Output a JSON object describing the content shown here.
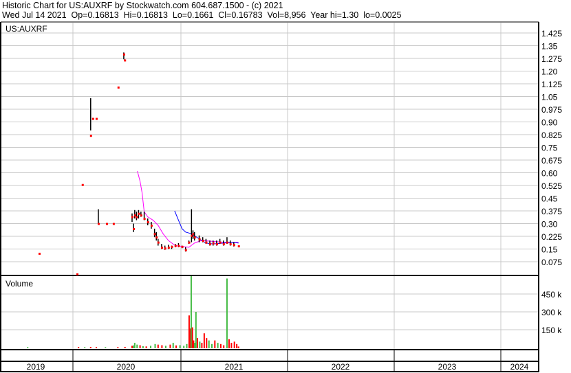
{
  "header": {
    "title": "Historic Chart for US:AUXRF by Stockwatch.com 604.687.1500 - (c) 2021",
    "quote": "Wed Jul 14 2021  Op=0.16813  Hi=0.16813  Lo=0.1661  Cl=0.16783  Vol=8,956  Year hi=1.30  lo=0.0025"
  },
  "colors": {
    "grid": "#c8c8c8",
    "close": "#ff0000",
    "range": "#000000",
    "ma_short": "#ff00ff",
    "ma_long": "#0000ff",
    "vol_up": "#44bb44",
    "vol_down": "#ff0000"
  },
  "chart_data": [
    {
      "type": "scatter",
      "title": "US:AUXRF",
      "ylim": [
        0,
        1.46
      ],
      "yticks": [
        "1.425",
        "1.35",
        "1.275",
        "1.20",
        "1.125",
        "1.05",
        "0.975",
        "0.90",
        "0.825",
        "0.75",
        "0.675",
        "0.60",
        "0.525",
        "0.45",
        "0.375",
        "0.30",
        "0.225",
        "0.15",
        "0.075"
      ],
      "xticks": [
        "2019",
        "2020",
        "2021",
        "2022",
        "2023",
        "2024"
      ],
      "grid": true,
      "price_bars": [
        {
          "date": "2019-09-09",
          "high": 0.124,
          "low": 0.124,
          "close": 0.124
        },
        {
          "date": "2020-01-15",
          "high": 0.005,
          "low": 0.0025,
          "close": 0.0025
        },
        {
          "date": "2020-02-02",
          "high": 0.53,
          "low": 0.53,
          "close": 0.53
        },
        {
          "date": "2020-03-01",
          "high": 1.04,
          "low": 0.85,
          "close": 0.82
        },
        {
          "date": "2020-03-08",
          "high": 0.92,
          "low": 0.92,
          "close": 0.92
        },
        {
          "date": "2020-03-20",
          "high": 0.92,
          "low": 0.92,
          "close": 0.92
        },
        {
          "date": "2020-03-27",
          "high": 0.385,
          "low": 0.3,
          "close": 0.3
        },
        {
          "date": "2020-04-24",
          "high": 0.3,
          "low": 0.3,
          "close": 0.3
        },
        {
          "date": "2020-05-17",
          "high": 0.3,
          "low": 0.3,
          "close": 0.3
        },
        {
          "date": "2020-06-02",
          "high": 1.105,
          "low": 1.105,
          "close": 1.105
        },
        {
          "date": "2020-06-21",
          "high": 1.31,
          "low": 1.27,
          "close": 1.3
        },
        {
          "date": "2020-06-24",
          "high": 1.27,
          "low": 1.26,
          "close": 1.265
        },
        {
          "date": "2020-07-19",
          "high": 0.36,
          "low": 0.31,
          "close": 0.34
        },
        {
          "date": "2020-07-24",
          "high": 0.3,
          "low": 0.25,
          "close": 0.27
        },
        {
          "date": "2020-07-28",
          "high": 0.38,
          "low": 0.33,
          "close": 0.35
        },
        {
          "date": "2020-08-03",
          "high": 0.37,
          "low": 0.32,
          "close": 0.34
        },
        {
          "date": "2020-08-10",
          "high": 0.38,
          "low": 0.33,
          "close": 0.36
        },
        {
          "date": "2020-08-18",
          "high": 0.37,
          "low": 0.34,
          "close": 0.35
        },
        {
          "date": "2020-08-29",
          "high": 0.37,
          "low": 0.32,
          "close": 0.33
        },
        {
          "date": "2020-09-10",
          "high": 0.33,
          "low": 0.29,
          "close": 0.31
        },
        {
          "date": "2020-09-22",
          "high": 0.31,
          "low": 0.27,
          "close": 0.29
        },
        {
          "date": "2020-10-03",
          "high": 0.27,
          "low": 0.22,
          "close": 0.24
        },
        {
          "date": "2020-10-09",
          "high": 0.25,
          "low": 0.2,
          "close": 0.22
        },
        {
          "date": "2020-10-15",
          "high": 0.21,
          "low": 0.17,
          "close": 0.19
        },
        {
          "date": "2020-10-27",
          "high": 0.18,
          "low": 0.15,
          "close": 0.16
        },
        {
          "date": "2020-11-07",
          "high": 0.17,
          "low": 0.145,
          "close": 0.155
        },
        {
          "date": "2020-11-19",
          "high": 0.175,
          "low": 0.15,
          "close": 0.16
        },
        {
          "date": "2020-11-30",
          "high": 0.17,
          "low": 0.15,
          "close": 0.165
        },
        {
          "date": "2020-12-12",
          "high": 0.18,
          "low": 0.16,
          "close": 0.17
        },
        {
          "date": "2020-12-23",
          "high": 0.185,
          "low": 0.16,
          "close": 0.17
        },
        {
          "date": "2021-01-04",
          "high": 0.17,
          "low": 0.155,
          "close": 0.165
        },
        {
          "date": "2021-01-16",
          "high": 0.16,
          "low": 0.135,
          "close": 0.145
        },
        {
          "date": "2021-01-27",
          "high": 0.2,
          "low": 0.18,
          "close": 0.19
        },
        {
          "date": "2021-02-05",
          "high": 0.385,
          "low": 0.19,
          "close": 0.23
        },
        {
          "date": "2021-02-10",
          "high": 0.26,
          "low": 0.21,
          "close": 0.24
        },
        {
          "date": "2021-02-15",
          "high": 0.25,
          "low": 0.2,
          "close": 0.22
        },
        {
          "date": "2021-03-03",
          "high": 0.23,
          "low": 0.19,
          "close": 0.21
        },
        {
          "date": "2021-03-15",
          "high": 0.22,
          "low": 0.19,
          "close": 0.2
        },
        {
          "date": "2021-03-26",
          "high": 0.21,
          "low": 0.18,
          "close": 0.19
        },
        {
          "date": "2021-04-08",
          "high": 0.2,
          "low": 0.17,
          "close": 0.18
        },
        {
          "date": "2021-04-19",
          "high": 0.2,
          "low": 0.17,
          "close": 0.185
        },
        {
          "date": "2021-05-01",
          "high": 0.2,
          "low": 0.17,
          "close": 0.18
        },
        {
          "date": "2021-05-12",
          "high": 0.21,
          "low": 0.18,
          "close": 0.19
        },
        {
          "date": "2021-05-24",
          "high": 0.2,
          "low": 0.17,
          "close": 0.18
        },
        {
          "date": "2021-06-05",
          "high": 0.22,
          "low": 0.18,
          "close": 0.19
        },
        {
          "date": "2021-06-16",
          "high": 0.2,
          "low": 0.17,
          "close": 0.18
        },
        {
          "date": "2021-06-28",
          "high": 0.19,
          "low": 0.165,
          "close": 0.175
        },
        {
          "date": "2021-07-14",
          "high": 0.16813,
          "low": 0.1661,
          "close": 0.16783
        }
      ],
      "ma_short": [
        [
          "2020-08-06",
          0.61
        ],
        [
          "2020-08-15",
          0.55
        ],
        [
          "2020-08-22",
          0.48
        ],
        [
          "2020-08-29",
          0.37
        ],
        [
          "2020-09-10",
          0.34
        ],
        [
          "2020-09-28",
          0.32
        ],
        [
          "2020-10-15",
          0.29
        ],
        [
          "2020-11-01",
          0.24
        ],
        [
          "2020-11-19",
          0.2
        ],
        [
          "2020-12-12",
          0.17
        ],
        [
          "2021-01-04",
          0.165
        ],
        [
          "2021-01-27",
          0.16
        ],
        [
          "2021-02-15",
          0.185
        ],
        [
          "2021-03-10",
          0.2
        ],
        [
          "2021-04-19",
          0.195
        ],
        [
          "2021-05-24",
          0.19
        ],
        [
          "2021-07-14",
          0.19
        ]
      ],
      "ma_long": [
        [
          "2020-12-10",
          0.375
        ],
        [
          "2020-12-23",
          0.32
        ],
        [
          "2021-01-04",
          0.27
        ],
        [
          "2021-01-16",
          0.25
        ],
        [
          "2021-02-05",
          0.24
        ],
        [
          "2021-03-03",
          0.21
        ],
        [
          "2021-03-26",
          0.185
        ],
        [
          "2021-04-19",
          0.18
        ],
        [
          "2021-05-24",
          0.185
        ],
        [
          "2021-06-28",
          0.19
        ],
        [
          "2021-07-14",
          0.185
        ]
      ]
    },
    {
      "type": "bar",
      "title": "Volume",
      "ylim": [
        0,
        600000
      ],
      "yticks": [
        "450 k",
        "300 k",
        "150 k"
      ],
      "bars": [
        [
          "2019-08-01",
          4000,
          "up"
        ],
        [
          "2020-01-20",
          5000,
          "down"
        ],
        [
          "2020-02-10",
          3000,
          "up"
        ],
        [
          "2020-03-01",
          5000,
          "down"
        ],
        [
          "2020-03-20",
          4000,
          "down"
        ],
        [
          "2020-04-20",
          3000,
          "up"
        ],
        [
          "2020-06-01",
          4000,
          "down"
        ],
        [
          "2020-06-25",
          6000,
          "down"
        ],
        [
          "2020-07-19",
          15000,
          "down"
        ],
        [
          "2020-07-24",
          18000,
          "up"
        ],
        [
          "2020-07-28",
          40000,
          "up"
        ],
        [
          "2020-08-05",
          25000,
          "up"
        ],
        [
          "2020-08-15",
          20000,
          "down"
        ],
        [
          "2020-08-25",
          12000,
          "up"
        ],
        [
          "2020-09-05",
          10000,
          "down"
        ],
        [
          "2020-09-20",
          15000,
          "up"
        ],
        [
          "2020-10-05",
          30000,
          "up"
        ],
        [
          "2020-10-15",
          25000,
          "down"
        ],
        [
          "2020-10-28",
          20000,
          "down"
        ],
        [
          "2020-11-10",
          15000,
          "up"
        ],
        [
          "2020-11-25",
          25000,
          "down"
        ],
        [
          "2020-12-05",
          40000,
          "up"
        ],
        [
          "2020-12-15",
          18000,
          "down"
        ],
        [
          "2020-12-28",
          20000,
          "up"
        ],
        [
          "2021-01-10",
          15000,
          "up"
        ],
        [
          "2021-01-20",
          30000,
          "up"
        ],
        [
          "2021-01-28",
          270000,
          "down"
        ],
        [
          "2021-02-01",
          160000,
          "down"
        ],
        [
          "2021-02-04",
          620000,
          "up"
        ],
        [
          "2021-02-08",
          170000,
          "down"
        ],
        [
          "2021-02-12",
          60000,
          "down"
        ],
        [
          "2021-02-16",
          40000,
          "up"
        ],
        [
          "2021-02-20",
          300000,
          "up"
        ],
        [
          "2021-02-25",
          80000,
          "down"
        ],
        [
          "2021-03-05",
          50000,
          "up"
        ],
        [
          "2021-03-12",
          40000,
          "down"
        ],
        [
          "2021-03-20",
          120000,
          "down"
        ],
        [
          "2021-03-28",
          80000,
          "down"
        ],
        [
          "2021-04-05",
          60000,
          "up"
        ],
        [
          "2021-04-15",
          30000,
          "up"
        ],
        [
          "2021-04-25",
          60000,
          "down"
        ],
        [
          "2021-05-05",
          40000,
          "up"
        ],
        [
          "2021-05-15",
          30000,
          "down"
        ],
        [
          "2021-05-25",
          20000,
          "down"
        ],
        [
          "2021-06-05",
          580000,
          "up"
        ],
        [
          "2021-06-12",
          70000,
          "down"
        ],
        [
          "2021-06-20",
          40000,
          "down"
        ],
        [
          "2021-06-30",
          50000,
          "down"
        ],
        [
          "2021-07-08",
          30000,
          "down"
        ],
        [
          "2021-07-14",
          8956,
          "down"
        ]
      ]
    }
  ]
}
